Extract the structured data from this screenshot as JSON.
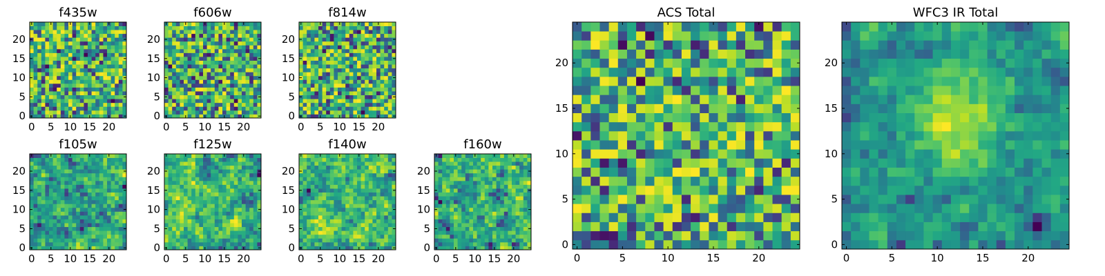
{
  "chart_data": [
    {
      "type": "heatmap",
      "title": "f435w",
      "grid_size": 25,
      "xticks": [
        0,
        5,
        10,
        15,
        20
      ],
      "yticks": [
        0,
        5,
        10,
        15,
        20
      ],
      "xlim": [
        -0.5,
        24.5
      ],
      "ylim": [
        -0.5,
        24.5
      ],
      "colormap": "viridis",
      "texture": "noise",
      "seed": 11
    },
    {
      "type": "heatmap",
      "title": "f606w",
      "grid_size": 25,
      "xticks": [
        0,
        5,
        10,
        15,
        20
      ],
      "yticks": [
        0,
        5,
        10,
        15,
        20
      ],
      "xlim": [
        -0.5,
        24.5
      ],
      "ylim": [
        -0.5,
        24.5
      ],
      "colormap": "viridis",
      "texture": "noise",
      "seed": 23
    },
    {
      "type": "heatmap",
      "title": "f814w",
      "grid_size": 25,
      "xticks": [
        0,
        5,
        10,
        15,
        20
      ],
      "yticks": [
        0,
        5,
        10,
        15,
        20
      ],
      "xlim": [
        -0.5,
        24.5
      ],
      "ylim": [
        -0.5,
        24.5
      ],
      "colormap": "viridis",
      "texture": "noise",
      "seed": 37
    },
    {
      "type": "heatmap",
      "title": "f105w",
      "grid_size": 25,
      "xticks": [
        0,
        5,
        10,
        15,
        20
      ],
      "yticks": [
        0,
        5,
        10,
        15,
        20
      ],
      "xlim": [
        -0.5,
        24.5
      ],
      "ylim": [
        -0.5,
        24.5
      ],
      "colormap": "viridis",
      "texture": "smooth",
      "seed": 41
    },
    {
      "type": "heatmap",
      "title": "f125w",
      "grid_size": 25,
      "xticks": [
        0,
        5,
        10,
        15,
        20
      ],
      "yticks": [
        0,
        5,
        10,
        15,
        20
      ],
      "xlim": [
        -0.5,
        24.5
      ],
      "ylim": [
        -0.5,
        24.5
      ],
      "colormap": "viridis",
      "texture": "smooth",
      "seed": 53
    },
    {
      "type": "heatmap",
      "title": "f140w",
      "grid_size": 25,
      "xticks": [
        0,
        5,
        10,
        15,
        20
      ],
      "yticks": [
        0,
        5,
        10,
        15,
        20
      ],
      "xlim": [
        -0.5,
        24.5
      ],
      "ylim": [
        -0.5,
        24.5
      ],
      "colormap": "viridis",
      "texture": "smooth",
      "seed": 67
    },
    {
      "type": "heatmap",
      "title": "f160w",
      "grid_size": 25,
      "xticks": [
        0,
        5,
        10,
        15,
        20
      ],
      "yticks": [
        0,
        5,
        10,
        15,
        20
      ],
      "xlim": [
        -0.5,
        24.5
      ],
      "ylim": [
        -0.5,
        24.5
      ],
      "colormap": "viridis",
      "texture": "smooth",
      "seed": 79
    },
    {
      "type": "heatmap",
      "title": "ACS Total",
      "grid_size": 25,
      "xticks": [
        0,
        5,
        10,
        15,
        20
      ],
      "yticks": [
        0,
        5,
        10,
        15,
        20
      ],
      "xlim": [
        -0.5,
        24.5
      ],
      "ylim": [
        -0.5,
        24.5
      ],
      "colormap": "viridis",
      "texture": "noise",
      "seed": 97
    },
    {
      "type": "heatmap",
      "title": "WFC3 IR Total",
      "grid_size": 25,
      "xticks": [
        0,
        5,
        10,
        15,
        20
      ],
      "yticks": [
        0,
        5,
        10,
        15,
        20
      ],
      "xlim": [
        -0.5,
        24.5
      ],
      "ylim": [
        -0.5,
        24.5
      ],
      "colormap": "viridis",
      "texture": "smooth-peak",
      "seed": 113
    }
  ]
}
